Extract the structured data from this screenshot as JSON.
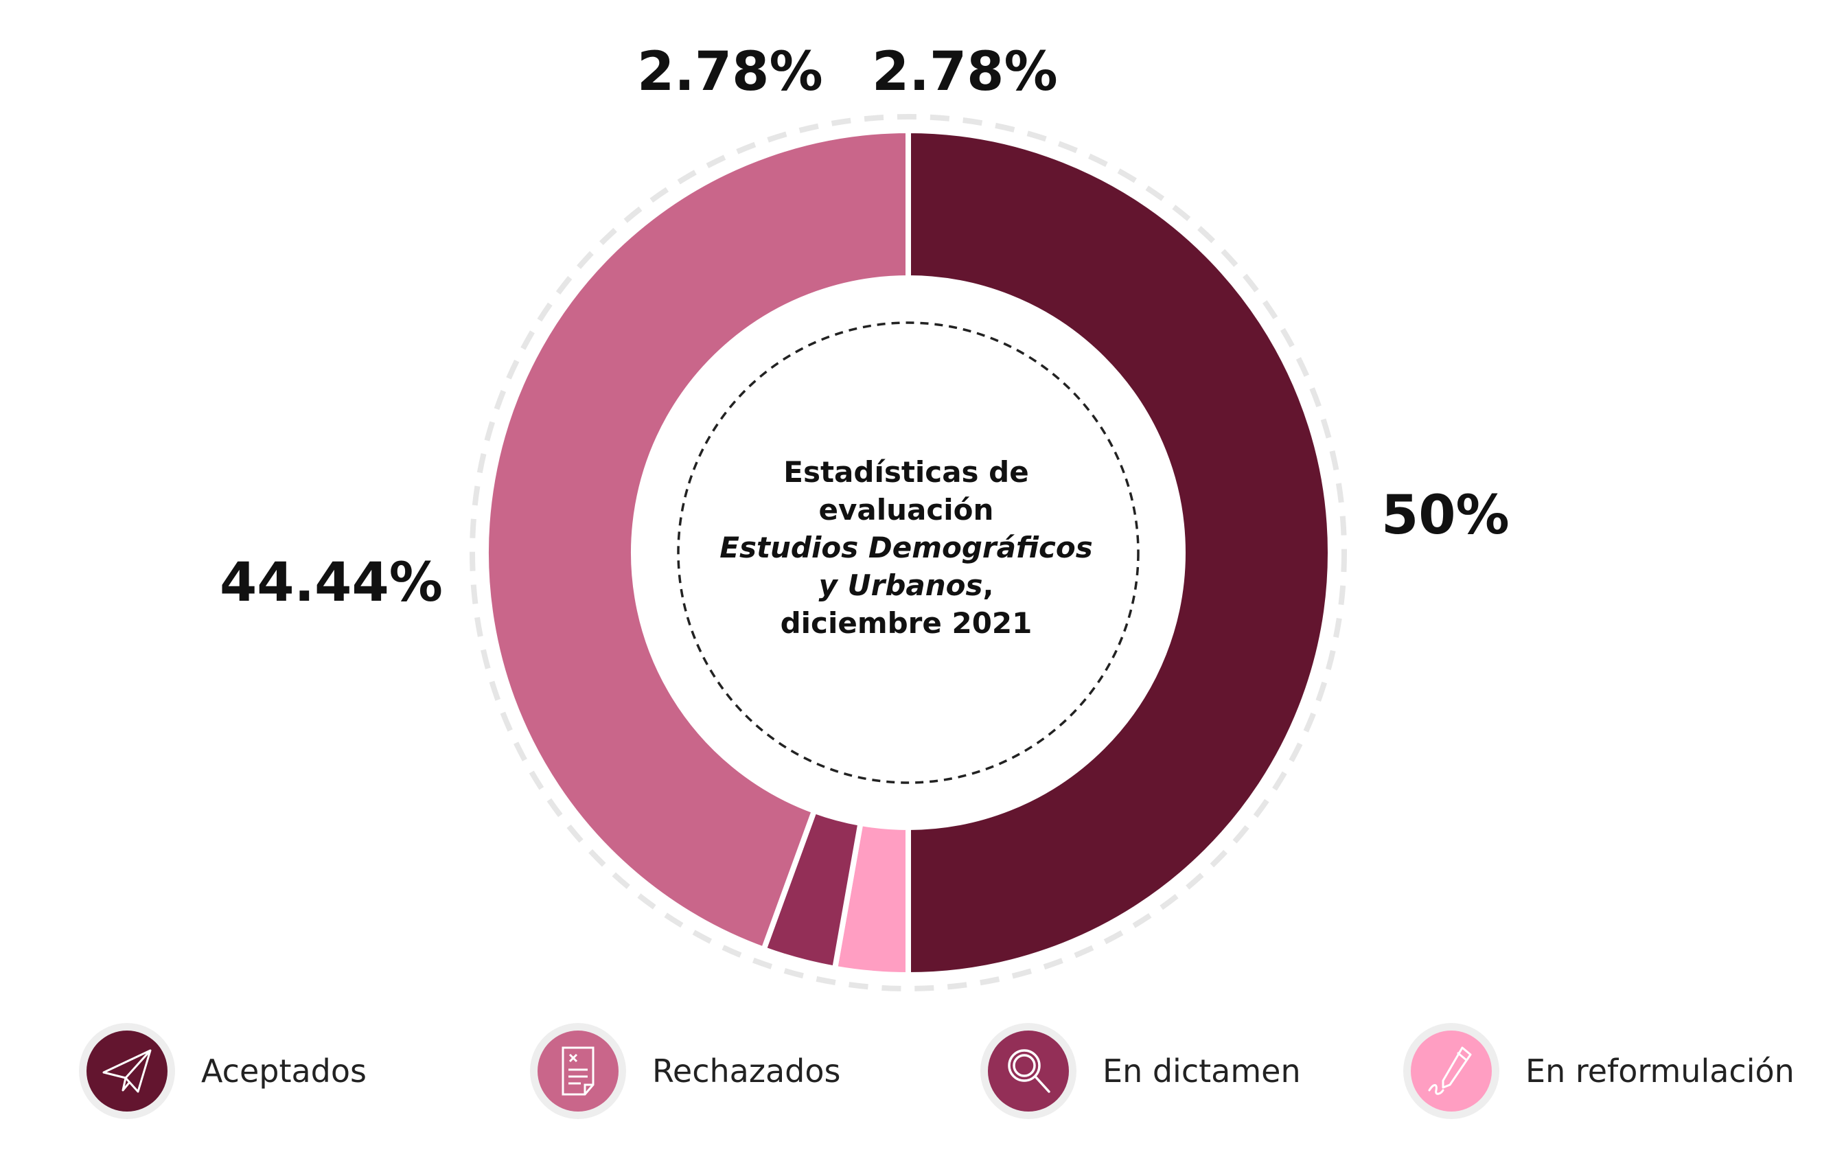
{
  "chart_data": {
    "type": "pie",
    "title": "Estadísticas de evaluación Estudios Demográficos y Urbanos, diciembre 2021",
    "categories": [
      "Aceptados",
      "En reformulación",
      "En dictamen",
      "Rechazados"
    ],
    "values": [
      50,
      2.78,
      2.78,
      44.44
    ],
    "colors": [
      "#63152f",
      "#ff9ec2",
      "#932f57",
      "#c9668a"
    ],
    "data_labels": [
      "50%",
      "2.78%",
      "2.78%",
      "44.44%"
    ],
    "legend_position": "bottom"
  },
  "center_title": {
    "line1": "Estadísticas de",
    "line2": "evaluación",
    "line3": "Estudios Demográficos",
    "line4_em": "y Urbanos",
    "line4_rest": ",",
    "line5": "diciembre 2021"
  },
  "legend": [
    {
      "label": "Aceptados",
      "color": "#63152f",
      "icon": "paper-plane-icon"
    },
    {
      "label": "Rechazados",
      "color": "#c9668a",
      "icon": "document-reject-icon"
    },
    {
      "label": "En dictamen",
      "color": "#932f57",
      "icon": "magnifier-icon"
    },
    {
      "label": "En reformulación",
      "color": "#ff9ec2",
      "icon": "pen-sign-icon"
    }
  ]
}
